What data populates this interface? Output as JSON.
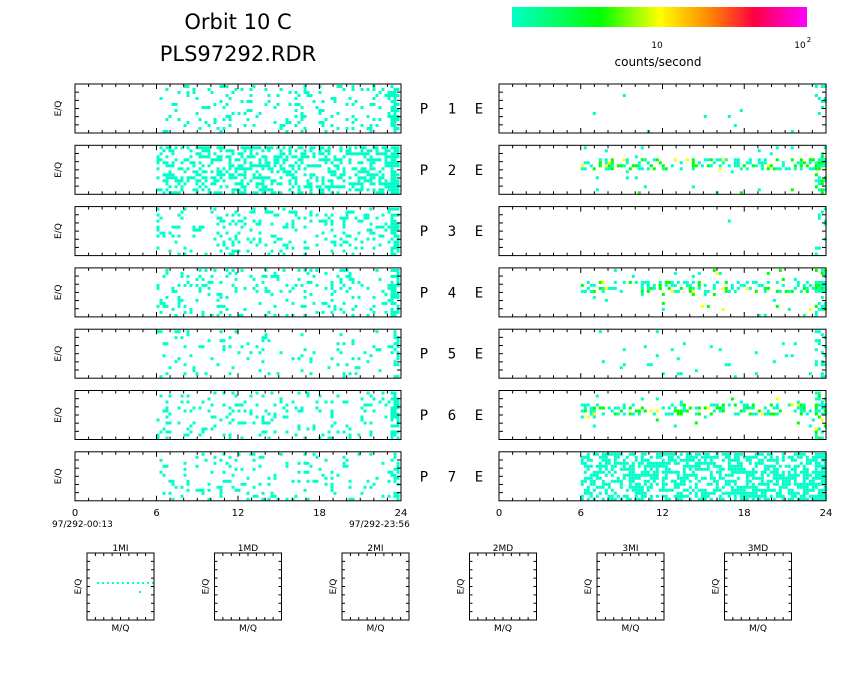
{
  "header": {
    "title_line1": "Orbit 10 C",
    "title_line2": "PLS97292.RDR"
  },
  "colorbar": {
    "tick_10": "10",
    "tick_100_base": "10",
    "tick_100_exp": "2",
    "unit_label": "counts/second",
    "colors": [
      "#00ffc8",
      "#00ff00",
      "#ffff00",
      "#ff8800",
      "#ff0040",
      "#ff00ff"
    ]
  },
  "panel_axis_label": "E/Q",
  "pair_labels": [
    {
      "p": "P",
      "n": "1",
      "e": "E"
    },
    {
      "p": "P",
      "n": "2",
      "e": "E"
    },
    {
      "p": "P",
      "n": "3",
      "e": "E"
    },
    {
      "p": "P",
      "n": "4",
      "e": "E"
    },
    {
      "p": "P",
      "n": "5",
      "e": "E"
    },
    {
      "p": "P",
      "n": "6",
      "e": "E"
    },
    {
      "p": "P",
      "n": "7",
      "e": "E"
    }
  ],
  "time_axis": {
    "left_ticks": [
      "0",
      "6",
      "12",
      "18",
      "24"
    ],
    "right_ticks": [
      "0",
      "6",
      "12",
      "18",
      "24"
    ],
    "start_time": "97/292-00:13",
    "end_time": "97/292-23:56"
  },
  "small_panels": [
    {
      "title": "1MI",
      "xlabel": "M/Q",
      "ylabel": "E/Q"
    },
    {
      "title": "1MD",
      "xlabel": "M/Q",
      "ylabel": "E/Q"
    },
    {
      "title": "2MI",
      "xlabel": "M/Q",
      "ylabel": "E/Q"
    },
    {
      "title": "2MD",
      "xlabel": "M/Q",
      "ylabel": "E/Q"
    },
    {
      "title": "3MI",
      "xlabel": "M/Q",
      "ylabel": "E/Q"
    },
    {
      "title": "3MD",
      "xlabel": "M/Q",
      "ylabel": "E/Q"
    }
  ],
  "chart_data": {
    "type": "heatmap",
    "xlabel": "",
    "ylabel": "E/Q",
    "xlim": [
      0,
      24
    ],
    "color_scale": "log",
    "colorbar_label": "counts/second",
    "left_channels": [
      {
        "name": "P 1",
        "active_from_hour": 6,
        "active_to_hour": 24,
        "density": 0.13,
        "level": 0
      },
      {
        "name": "P 2",
        "active_from_hour": 6,
        "active_to_hour": 24,
        "density": 0.42,
        "level": 0
      },
      {
        "name": "P 3",
        "active_from_hour": 6,
        "active_to_hour": 24,
        "density": 0.16,
        "level": 0
      },
      {
        "name": "P 4",
        "active_from_hour": 6,
        "active_to_hour": 24,
        "density": 0.14,
        "level": 0
      },
      {
        "name": "P 5",
        "active_from_hour": 6,
        "active_to_hour": 24,
        "density": 0.06,
        "level": 0
      },
      {
        "name": "P 6",
        "active_from_hour": 6,
        "active_to_hour": 24,
        "density": 0.13,
        "level": 0
      },
      {
        "name": "P 7",
        "active_from_hour": 6,
        "active_to_hour": 24,
        "density": 0.12,
        "level": 0
      }
    ],
    "right_channels": [
      {
        "name": "E 1",
        "active_from_hour": 6,
        "active_to_hour": 24,
        "density": 0.004,
        "level": 0
      },
      {
        "name": "E 2",
        "active_from_hour": 6,
        "active_to_hour": 24,
        "density": 0.05,
        "level": 1
      },
      {
        "name": "E 3",
        "active_from_hour": 6,
        "active_to_hour": 24,
        "density": 0.002,
        "level": 0
      },
      {
        "name": "E 4",
        "active_from_hour": 6,
        "active_to_hour": 24,
        "density": 0.07,
        "level": 1
      },
      {
        "name": "E 5",
        "active_from_hour": 6,
        "active_to_hour": 24,
        "density": 0.02,
        "level": 0
      },
      {
        "name": "E 6",
        "active_from_hour": 6,
        "active_to_hour": 24,
        "density": 0.05,
        "level": 1
      },
      {
        "name": "E 7",
        "active_from_hour": 6,
        "active_to_hour": 24,
        "density": 0.55,
        "level": 0
      }
    ]
  }
}
